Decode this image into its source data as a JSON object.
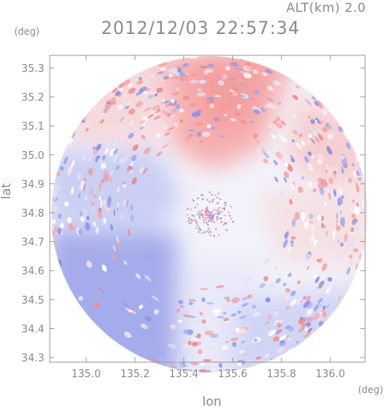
{
  "header": {
    "altitude_label": "ALT(km)  2.0",
    "datetime": "2012/12/03 22:57:34",
    "lat_unit": "(deg)",
    "lon_unit": "(deg)"
  },
  "axes": {
    "ylabel": "lat",
    "xlabel": "lon",
    "lat_ticks": [
      "35.3",
      "35.2",
      "35.1",
      "35.0",
      "34.9",
      "34.8",
      "34.7",
      "34.6",
      "34.5",
      "34.4",
      "34.3"
    ],
    "lon_ticks": [
      "135.0",
      "135.2",
      "135.4",
      "135.6",
      "135.8",
      "136.0"
    ]
  },
  "map_data": {
    "type": "radar-doppler-ppi",
    "lat_range": [
      34.27,
      35.35
    ],
    "lon_range": [
      134.87,
      136.18
    ],
    "center": {
      "lon": 135.52,
      "lat": 34.81
    },
    "colors": {
      "approach_blue": "#9ea8ee",
      "recede_red": "#f4a4a4",
      "neutral": "#f1f1fb",
      "frame": "#9a9a9a"
    }
  }
}
